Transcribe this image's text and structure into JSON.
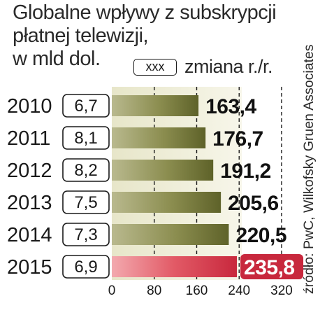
{
  "chart_data": {
    "type": "bar",
    "orientation": "horizontal",
    "title_lines": [
      "Globalne wpływy z subskrypcji",
      "płatnej telewizji,",
      "w mld dol."
    ],
    "legend_box": "xxx",
    "legend_text": "zmiana r./r.",
    "categories": [
      "2010",
      "2011",
      "2012",
      "2013",
      "2014",
      "2015"
    ],
    "values": [
      163.4,
      176.7,
      191.2,
      205.6,
      220.5,
      235.8
    ],
    "value_labels": [
      "163,4",
      "176,7",
      "191,2",
      "205,6",
      "220,5",
      "235,8"
    ],
    "changes": [
      "6,7",
      "8,1",
      "8,2",
      "7,5",
      "7,3",
      "6,9"
    ],
    "highlighted": [
      false,
      false,
      false,
      false,
      false,
      true
    ],
    "xlim": [
      0,
      320
    ],
    "xticks": [
      0,
      80,
      160,
      240,
      320
    ],
    "xtick_labels": [
      "0",
      "80",
      "160",
      "240",
      "320"
    ],
    "grid": "vertical dashed",
    "source": "źródło: PwC, Wilkofsky Gruen Associates",
    "colors": {
      "bar": "#7a7d3a",
      "bar_highlight": "#d4354a",
      "label_highlight_bg": "#c8283d",
      "panel": "#eeeed8"
    }
  }
}
